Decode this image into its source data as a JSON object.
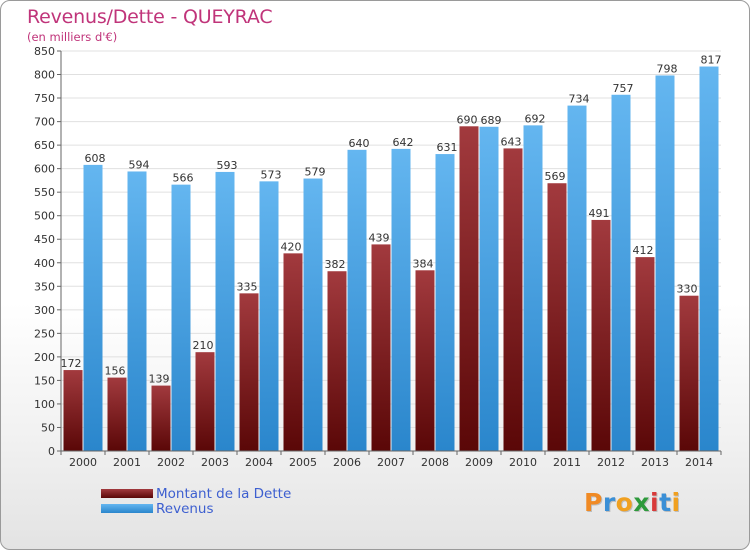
{
  "header": {
    "title": "Revenus/Dette - QUEYRAC",
    "subtitle": "(en milliers d'€)"
  },
  "colors": {
    "title": "#c0347a",
    "dette_top": "#a23a3e",
    "dette_bottom": "#5a0707",
    "revenus_top": "#64b6f0",
    "revenus_bottom": "#2a86cc",
    "grid": "#e0e0e0",
    "axis": "#666666",
    "legend_text": "#3d5fd0"
  },
  "chart_data": {
    "type": "bar",
    "title": "Revenus/Dette - QUEYRAC",
    "subtitle": "(en milliers d'€)",
    "xlabel": "",
    "ylabel": "",
    "categories": [
      "2000",
      "2001",
      "2002",
      "2003",
      "2004",
      "2005",
      "2006",
      "2007",
      "2008",
      "2009",
      "2010",
      "2011",
      "2012",
      "2013",
      "2014"
    ],
    "series": [
      {
        "name": "Montant de la Dette",
        "values": [
          172,
          156,
          139,
          210,
          335,
          420,
          382,
          439,
          384,
          690,
          643,
          569,
          491,
          412,
          330
        ]
      },
      {
        "name": "Revenus",
        "values": [
          608,
          594,
          566,
          593,
          573,
          579,
          640,
          642,
          631,
          689,
          692,
          734,
          757,
          798,
          817
        ]
      }
    ],
    "ylim": [
      0,
      850
    ],
    "yticks": [
      0,
      50,
      100,
      150,
      200,
      250,
      300,
      350,
      400,
      450,
      500,
      550,
      600,
      650,
      700,
      750,
      800,
      850
    ],
    "grid": true,
    "legend_position": "bottom-left"
  },
  "legend": {
    "items": [
      {
        "label": "Montant de la Dette"
      },
      {
        "label": "Revenus"
      }
    ]
  },
  "logo": {
    "letters": [
      "P",
      "r",
      "o",
      "x",
      "i",
      "t",
      "i"
    ],
    "letter_colors": [
      "#f08a24",
      "#3a8fd6",
      "#f0a020",
      "#2e9a3c",
      "#d83a3a",
      "#3a8fd6",
      "#f0a020"
    ]
  }
}
